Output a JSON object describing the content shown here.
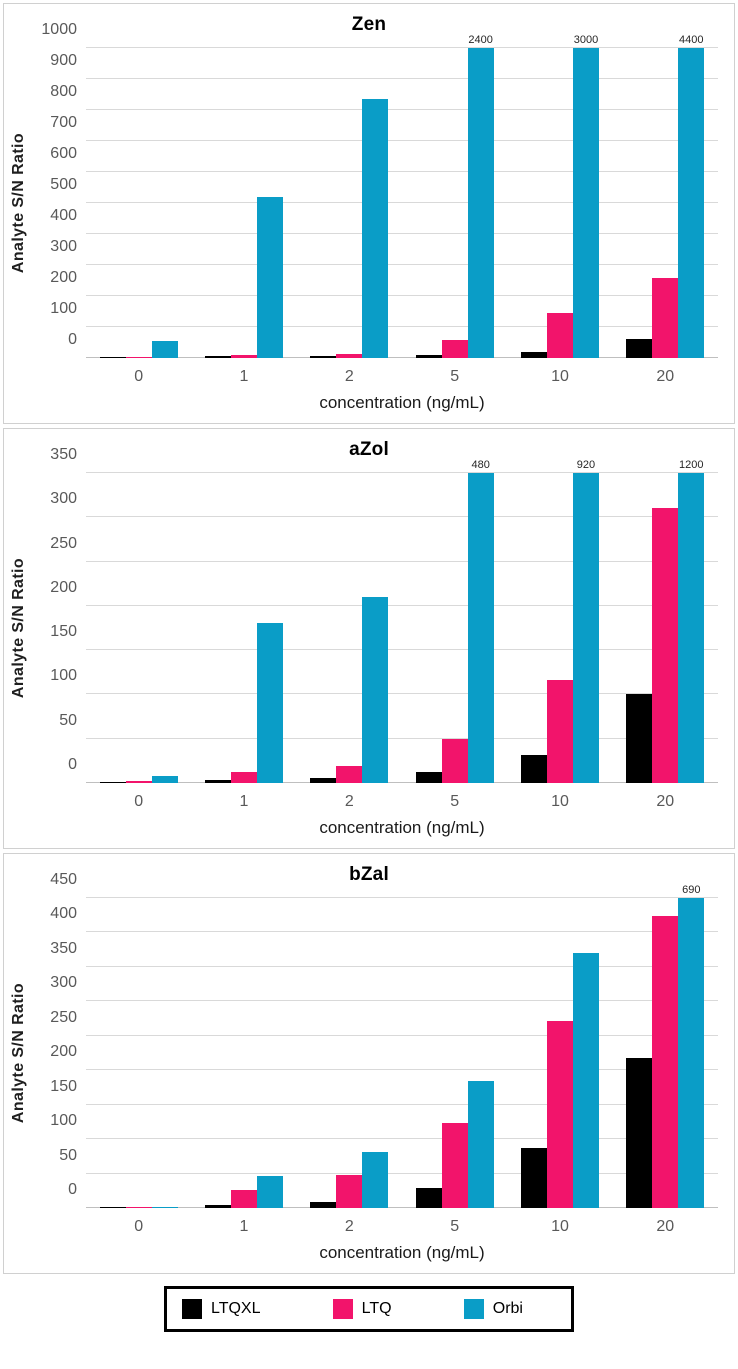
{
  "style": {
    "color_ltqxl": "#000000",
    "color_ltq": "#f2146b",
    "color_orbi": "#0a9dc7",
    "gridline_color": "#d9d9d9",
    "axis_line_color": "#bfbfbf",
    "panel_border_color": "#d0d0d0",
    "tick_text_color": "#595959"
  },
  "legend": {
    "items": [
      {
        "label": "LTQXL",
        "color": "#000000"
      },
      {
        "label": "LTQ",
        "color": "#f2146b"
      },
      {
        "label": "Orbi",
        "color": "#0a9dc7"
      }
    ]
  },
  "chart_data": [
    {
      "type": "bar",
      "title": "Zen",
      "xlabel": "concentration (ng/mL)",
      "ylabel": "Analyte S/N Ratio",
      "categories": [
        "0",
        "1",
        "2",
        "5",
        "10",
        "20"
      ],
      "ylim": [
        0,
        1000
      ],
      "ytick_step": 100,
      "grid": true,
      "legend_position": "bottom-shared",
      "note": "Orbi bars above axis max are clipped at 1000 and annotated with their true value",
      "series": [
        {
          "name": "LTQXL",
          "color": "#000000",
          "values": [
            4,
            5,
            6,
            10,
            20,
            62
          ]
        },
        {
          "name": "LTQ",
          "color": "#f2146b",
          "values": [
            4,
            9,
            13,
            57,
            145,
            257
          ]
        },
        {
          "name": "Orbi",
          "color": "#0a9dc7",
          "values": [
            55,
            520,
            835,
            2400,
            3000,
            4400
          ]
        }
      ]
    },
    {
      "type": "bar",
      "title": "aZol",
      "xlabel": "concentration (ng/mL)",
      "ylabel": "Analyte S/N Ratio",
      "categories": [
        "0",
        "1",
        "2",
        "5",
        "10",
        "20"
      ],
      "ylim": [
        0,
        350
      ],
      "ytick_step": 50,
      "grid": true,
      "legend_position": "bottom-shared",
      "note": "Orbi bars above axis max are clipped at 350 and annotated with their true value",
      "series": [
        {
          "name": "LTQXL",
          "color": "#000000",
          "values": [
            1,
            3,
            6,
            12,
            32,
            101
          ]
        },
        {
          "name": "LTQ",
          "color": "#f2146b",
          "values": [
            2,
            13,
            19,
            50,
            116,
            310
          ]
        },
        {
          "name": "Orbi",
          "color": "#0a9dc7",
          "values": [
            8,
            181,
            210,
            480,
            920,
            1200
          ]
        }
      ]
    },
    {
      "type": "bar",
      "title": "bZal",
      "xlabel": "concentration (ng/mL)",
      "ylabel": "Analyte S/N Ratio",
      "categories": [
        "0",
        "1",
        "2",
        "5",
        "10",
        "20"
      ],
      "ylim": [
        0,
        450
      ],
      "ytick_step": 50,
      "grid": true,
      "legend_position": "bottom-shared",
      "note": "Orbi bar above axis max is clipped at 450 and annotated with its true value",
      "series": [
        {
          "name": "LTQXL",
          "color": "#000000",
          "values": [
            1,
            4,
            9,
            29,
            87,
            218
          ]
        },
        {
          "name": "LTQ",
          "color": "#f2146b",
          "values": [
            1,
            26,
            48,
            123,
            272,
            424
          ]
        },
        {
          "name": "Orbi",
          "color": "#0a9dc7",
          "values": [
            1,
            47,
            82,
            184,
            370,
            690
          ]
        }
      ]
    }
  ]
}
